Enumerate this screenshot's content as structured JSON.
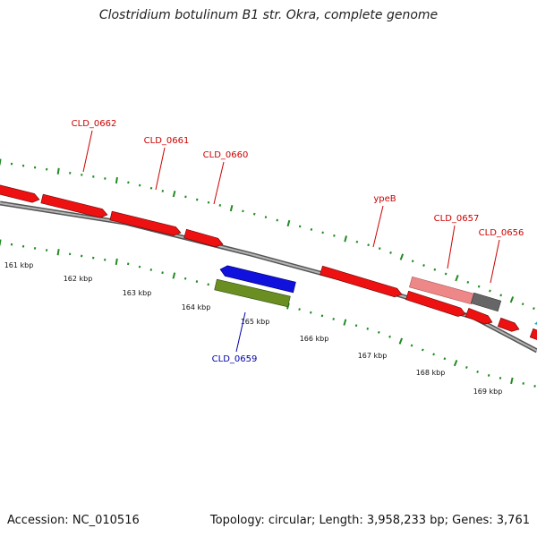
{
  "title": "Clostridium botulinum B1 str. Okra, complete genome",
  "footer": {
    "accession": "Accession: NC_010516",
    "summary": "Topology: circular; Length: 3,958,233 bp; Genes: 3,761"
  },
  "colors": {
    "forward_gene": "#ee1111",
    "reverse_gene": "#1111dd",
    "rna_gene": "#6b8e23",
    "pseudo_gene": "#ee8888",
    "other_gene": "#666666",
    "cyan_gene": "#22aacc",
    "tick": "#228b22",
    "backbone": "#808080",
    "label_forward": "#cc0000",
    "label_reverse": "#0000aa"
  },
  "axis": {
    "unit": "kbp",
    "scale_labels": [
      "161 kbp",
      "162 kbp",
      "163 kbp",
      "164 kbp",
      "165 kbp",
      "166 kbp",
      "167 kbp",
      "168 kbp",
      "169 kbp"
    ]
  },
  "gene_labels": [
    {
      "text": "CLD_0662",
      "strand": "forward"
    },
    {
      "text": "CLD_0661",
      "strand": "forward"
    },
    {
      "text": "CLD_0660",
      "strand": "forward"
    },
    {
      "text": "ypeB",
      "strand": "forward"
    },
    {
      "text": "CLD_0657",
      "strand": "forward"
    },
    {
      "text": "CLD_0656",
      "strand": "forward"
    },
    {
      "text": "CLD_0659",
      "strand": "reverse"
    }
  ]
}
